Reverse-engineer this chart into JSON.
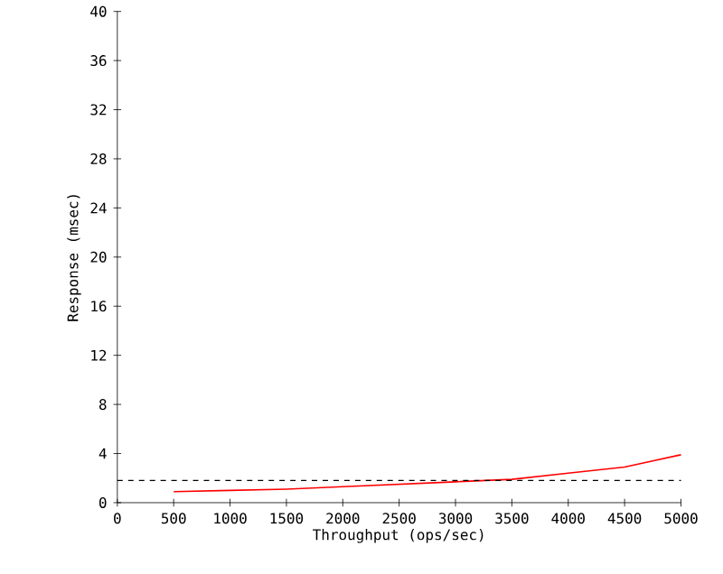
{
  "chart_data": {
    "type": "line",
    "xlabel": "Throughput (ops/sec)",
    "ylabel": "Response (msec)",
    "x": [
      500,
      1000,
      1500,
      2000,
      2500,
      3000,
      3500,
      4000,
      4500,
      5000
    ],
    "series": [
      {
        "color": "#ff0000",
        "values": [
          0.9,
          1.0,
          1.1,
          1.3,
          1.5,
          1.7,
          1.9,
          2.4,
          2.9,
          3.9
        ]
      }
    ],
    "xlim": [
      0,
      5000
    ],
    "ylim": [
      0,
      40
    ],
    "xticks": [
      0,
      500,
      1000,
      1500,
      2000,
      2500,
      3000,
      3500,
      4000,
      4500,
      5000
    ],
    "yticks": [
      0,
      4,
      8,
      12,
      16,
      20,
      24,
      28,
      32,
      36,
      40
    ],
    "ref_lines": [
      {
        "axis": "y",
        "value": 1.8,
        "color": "#000000",
        "line_style": "dashed"
      }
    ],
    "grid": false
  }
}
